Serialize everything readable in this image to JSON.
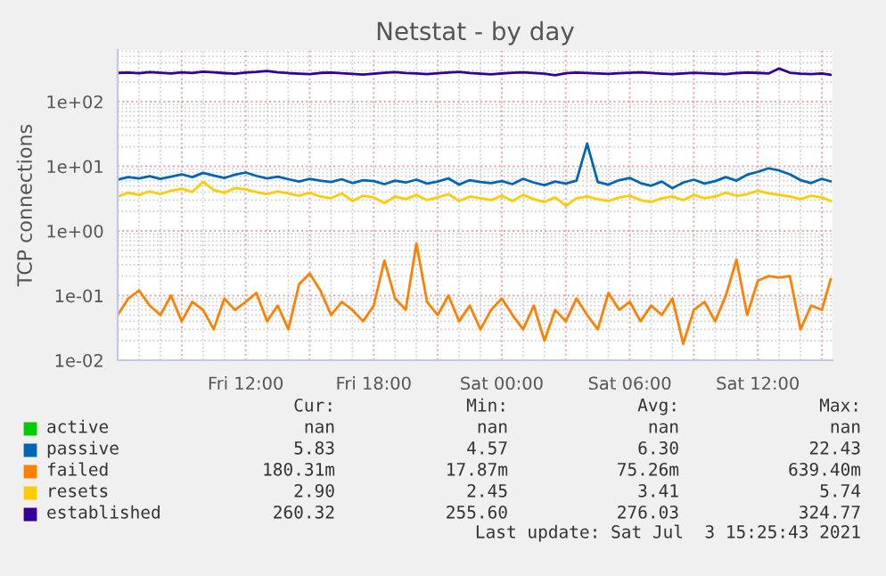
{
  "chart_data": {
    "type": "line",
    "title": "Netstat - by day",
    "ylabel": "TCP connections",
    "log": "y",
    "grid": true,
    "legend": "bottom",
    "line_style": "solid",
    "x": [
      "2021-07-02T06:00",
      "2021-07-02T06:30",
      "2021-07-02T07:00",
      "2021-07-02T07:30",
      "2021-07-02T08:00",
      "2021-07-02T08:30",
      "2021-07-02T09:00",
      "2021-07-02T09:30",
      "2021-07-02T10:00",
      "2021-07-02T10:30",
      "2021-07-02T11:00",
      "2021-07-02T11:30",
      "2021-07-02T12:00",
      "2021-07-02T12:30",
      "2021-07-02T13:00",
      "2021-07-02T13:30",
      "2021-07-02T14:00",
      "2021-07-02T14:30",
      "2021-07-02T15:00",
      "2021-07-02T15:30",
      "2021-07-02T16:00",
      "2021-07-02T16:30",
      "2021-07-02T17:00",
      "2021-07-02T17:30",
      "2021-07-02T18:00",
      "2021-07-02T18:30",
      "2021-07-02T19:00",
      "2021-07-02T19:30",
      "2021-07-02T20:00",
      "2021-07-02T20:30",
      "2021-07-02T21:00",
      "2021-07-02T21:30",
      "2021-07-02T22:00",
      "2021-07-02T22:30",
      "2021-07-02T23:00",
      "2021-07-02T23:30",
      "2021-07-03T00:00",
      "2021-07-03T00:30",
      "2021-07-03T01:00",
      "2021-07-03T01:30",
      "2021-07-03T02:00",
      "2021-07-03T02:30",
      "2021-07-03T03:00",
      "2021-07-03T03:30",
      "2021-07-03T04:00",
      "2021-07-03T04:30",
      "2021-07-03T05:00",
      "2021-07-03T05:30",
      "2021-07-03T06:00",
      "2021-07-03T06:30",
      "2021-07-03T07:00",
      "2021-07-03T07:30",
      "2021-07-03T08:00",
      "2021-07-03T08:30",
      "2021-07-03T09:00",
      "2021-07-03T09:30",
      "2021-07-03T10:00",
      "2021-07-03T10:30",
      "2021-07-03T11:00",
      "2021-07-03T11:30",
      "2021-07-03T12:00",
      "2021-07-03T12:30",
      "2021-07-03T13:00",
      "2021-07-03T13:30",
      "2021-07-03T14:00",
      "2021-07-03T14:30",
      "2021-07-03T15:00",
      "2021-07-03T15:25"
    ],
    "xlim": [
      "2021-07-02T06:00",
      "2021-07-03T15:30"
    ],
    "xticks": [
      {
        "value": "2021-07-02T09:00",
        "label": null
      },
      {
        "value": "2021-07-02T12:00",
        "label": "Fri 12:00"
      },
      {
        "value": "2021-07-02T15:00",
        "label": null
      },
      {
        "value": "2021-07-02T18:00",
        "label": "Fri 18:00"
      },
      {
        "value": "2021-07-02T21:00",
        "label": null
      },
      {
        "value": "2021-07-03T00:00",
        "label": "Sat 00:00"
      },
      {
        "value": "2021-07-03T03:00",
        "label": null
      },
      {
        "value": "2021-07-03T06:00",
        "label": "Sat 06:00"
      },
      {
        "value": "2021-07-03T09:00",
        "label": null
      },
      {
        "value": "2021-07-03T12:00",
        "label": "Sat 12:00"
      },
      {
        "value": "2021-07-03T15:00",
        "label": null
      }
    ],
    "ylim": [
      0.01,
      630
    ],
    "yticks": [
      {
        "value": 0.01,
        "label": "1e-02"
      },
      {
        "value": 0.1,
        "label": "1e-01"
      },
      {
        "value": 1,
        "label": "1e+00"
      },
      {
        "value": 10,
        "label": "1e+01"
      },
      {
        "value": 100,
        "label": "1e+02"
      }
    ],
    "series": [
      {
        "name": "active",
        "color": "#00cc00",
        "values": [
          null,
          null,
          null,
          null,
          null,
          null,
          null,
          null,
          null,
          null,
          null,
          null,
          null,
          null,
          null,
          null,
          null,
          null,
          null,
          null,
          null,
          null,
          null,
          null,
          null,
          null,
          null,
          null,
          null,
          null,
          null,
          null,
          null,
          null,
          null,
          null,
          null,
          null,
          null,
          null,
          null,
          null,
          null,
          null,
          null,
          null,
          null,
          null,
          null,
          null,
          null,
          null,
          null,
          null,
          null,
          null,
          null,
          null,
          null,
          null,
          null,
          null,
          null,
          null,
          null,
          null,
          null,
          null
        ]
      },
      {
        "name": "passive",
        "color": "#0066b3",
        "values": [
          6.2,
          6.8,
          6.5,
          7.0,
          6.4,
          6.9,
          7.5,
          6.8,
          7.9,
          7.2,
          6.6,
          7.4,
          8.0,
          7.1,
          6.5,
          6.9,
          6.3,
          5.8,
          6.4,
          6.0,
          5.7,
          6.3,
          5.5,
          6.1,
          5.9,
          5.3,
          6.0,
          5.6,
          6.2,
          5.4,
          5.8,
          6.5,
          5.2,
          6.1,
          5.7,
          5.5,
          5.9,
          5.3,
          6.4,
          5.6,
          5.1,
          5.8,
          5.4,
          6.0,
          22.43,
          5.7,
          5.2,
          6.1,
          6.6,
          5.5,
          5.0,
          5.8,
          4.57,
          5.6,
          6.2,
          5.4,
          5.9,
          6.8,
          6.0,
          7.4,
          8.2,
          9.3,
          8.6,
          7.5,
          6.1,
          5.5,
          6.4,
          5.83
        ]
      },
      {
        "name": "failed",
        "color": "#ff8000",
        "values": [
          0.05,
          0.09,
          0.12,
          0.07,
          0.05,
          0.1,
          0.04,
          0.08,
          0.06,
          0.03,
          0.09,
          0.06,
          0.08,
          0.11,
          0.04,
          0.07,
          0.03,
          0.15,
          0.22,
          0.12,
          0.05,
          0.08,
          0.06,
          0.04,
          0.07,
          0.35,
          0.09,
          0.06,
          0.6394,
          0.08,
          0.05,
          0.1,
          0.04,
          0.07,
          0.03,
          0.06,
          0.09,
          0.05,
          0.03,
          0.07,
          0.02,
          0.06,
          0.04,
          0.09,
          0.05,
          0.03,
          0.11,
          0.06,
          0.08,
          0.04,
          0.07,
          0.05,
          0.09,
          0.01787,
          0.06,
          0.08,
          0.04,
          0.1,
          0.36,
          0.05,
          0.17,
          0.2,
          0.19,
          0.2,
          0.03,
          0.07,
          0.06,
          0.18031
        ]
      },
      {
        "name": "resets",
        "color": "#ffcc00",
        "values": [
          3.4,
          3.9,
          3.6,
          4.1,
          3.7,
          4.2,
          4.5,
          4.0,
          5.74,
          4.3,
          3.9,
          4.6,
          4.4,
          4.0,
          3.7,
          4.1,
          3.8,
          3.5,
          3.9,
          3.4,
          3.2,
          3.8,
          2.9,
          3.5,
          3.3,
          2.7,
          3.4,
          3.1,
          3.6,
          3.0,
          3.3,
          3.7,
          2.9,
          3.4,
          3.2,
          3.0,
          3.5,
          2.9,
          3.6,
          3.1,
          2.8,
          3.3,
          2.45,
          3.2,
          3.4,
          3.1,
          2.9,
          3.3,
          3.5,
          3.0,
          2.8,
          3.2,
          3.4,
          3.0,
          3.6,
          3.2,
          3.4,
          3.9,
          3.5,
          3.7,
          4.2,
          3.8,
          3.6,
          3.4,
          3.1,
          3.5,
          3.3,
          2.9
        ]
      },
      {
        "name": "established",
        "color": "#330099",
        "values": [
          278,
          282,
          275,
          286,
          280,
          272,
          284,
          277,
          291,
          283,
          276,
          270,
          281,
          288,
          298,
          284,
          276,
          271,
          266,
          278,
          282,
          274,
          269,
          262,
          271,
          280,
          285,
          277,
          272,
          267,
          275,
          281,
          289,
          277,
          271,
          265,
          273,
          279,
          284,
          276,
          270,
          255.6,
          274,
          281,
          277,
          272,
          269,
          275,
          280,
          283,
          277,
          271,
          266,
          273,
          279,
          275,
          270,
          267,
          276,
          282,
          278,
          272,
          324.77,
          280,
          270,
          266,
          273,
          260.32
        ]
      }
    ],
    "annotations": [
      "Cur:",
      "Min:",
      "Avg:",
      "Max:",
      "nan",
      "nan",
      "nan",
      "nan",
      "5.83",
      "4.57",
      "6.30",
      "22.43",
      "180.31m",
      "17.87m",
      "75.26m",
      "639.40m",
      "2.90",
      "2.45",
      "3.41",
      "5.74",
      "260.32",
      "255.60",
      "276.03",
      "324.77",
      "Last update: Sat Jul  3 15:25:43 2021"
    ]
  }
}
